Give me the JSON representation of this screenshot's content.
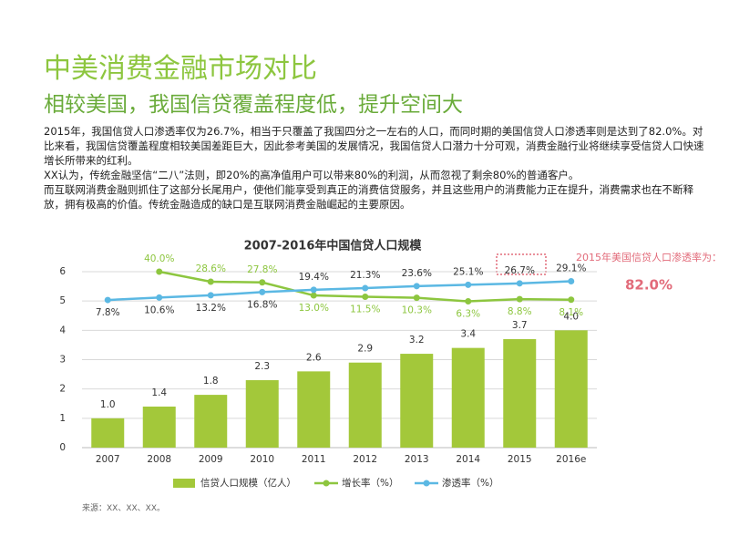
{
  "title": "中美消费金融市场对比",
  "subtitle": "相较美国，我国信贷覆盖程度低，提升空间大",
  "paragraphs": [
    "2015年，我国信贷人口渗透率仅为26.7%，相当于只覆盖了我国四分之一左右的人口，而同时期的美国信贷人口渗透率则是达到了82.0%。对比来看，我国信贷覆盖程度相较美国差距巨大，因此参考美国的发展情况，我国信贷人口潜力十分可观，消费金融行业将继续享受信贷人口快速增长所带来的红利。",
    "XX认为，传统金融坚信“二八”法则，即20%的高净值用户可以带来80%的利润，从而忽视了剩余80%的普通客户。",
    "而互联网消费金融则抓住了这部分长尾用户，使他们能享受到真正的消费信贷服务，并且这些用户的消费能力正在提升，消费需求也在不断释放，拥有极高的价值。传统金融造成的缺口是互联网消费金融崛起的主要原因。"
  ],
  "source": "来源：XX、XX、XX。",
  "chart_data": {
    "type": "bar",
    "title": "2007-2016年中国信贷人口规模",
    "categories": [
      "2007",
      "2008",
      "2009",
      "2010",
      "2011",
      "2012",
      "2013",
      "2014",
      "2015",
      "2016e"
    ],
    "ylim": [
      0,
      6
    ],
    "yticks": [
      0,
      1,
      2,
      3,
      4,
      5,
      6
    ],
    "y2lim": [
      -160,
      40
    ],
    "grid": true,
    "legend": "bottom",
    "series": [
      {
        "name": "信贷人口规模（亿人）",
        "type": "bar",
        "color": "#a3c83a",
        "values": [
          1.0,
          1.4,
          1.8,
          2.3,
          2.6,
          2.9,
          3.2,
          3.4,
          3.7,
          4.0
        ],
        "value_labels": [
          "1.0",
          "1.4",
          "1.8",
          "2.3",
          "2.6",
          "2.9",
          "3.2",
          "3.4",
          "3.7",
          "4.0"
        ]
      },
      {
        "name": "增长率（%）",
        "type": "line",
        "axis": "y2",
        "color": "#8dc63f",
        "values": [
          null,
          40.0,
          28.6,
          27.8,
          13.0,
          11.5,
          10.3,
          6.3,
          8.8,
          8.1
        ],
        "value_labels": [
          null,
          "40.0%",
          "28.6%",
          "27.8%",
          "13.0%",
          "11.5%",
          "10.3%",
          "6.3%",
          "8.8%",
          "8.1%"
        ]
      },
      {
        "name": "渗透率（%）",
        "type": "line",
        "axis": "y2",
        "color": "#5bb8e3",
        "values": [
          7.8,
          10.6,
          13.2,
          16.8,
          19.4,
          21.3,
          23.6,
          25.1,
          26.7,
          29.1
        ],
        "value_labels": [
          "7.8%",
          "10.6%",
          "13.2%",
          "16.8%",
          "19.4%",
          "21.3%",
          "23.6%",
          "25.1%",
          "26.7%",
          "29.1%"
        ]
      }
    ],
    "annotation": {
      "text": "2015年美国信贷人口渗透率为：",
      "value_label": "82.0%"
    }
  }
}
